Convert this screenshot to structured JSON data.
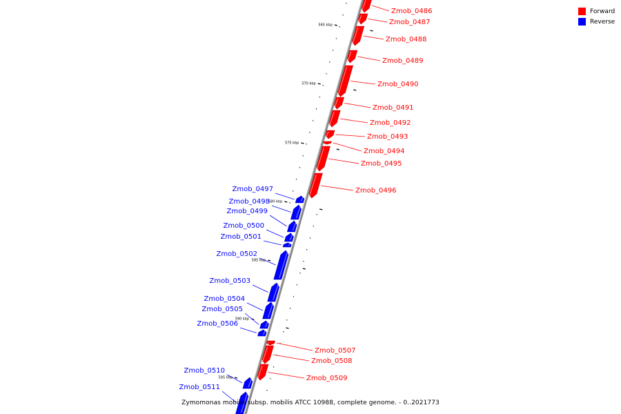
{
  "colors": {
    "forward": "#ff0000",
    "forward_edge": "#c00000",
    "forward_hl": "#ff9a9a",
    "reverse": "#0000ff",
    "reverse_edge": "#0000b0",
    "reverse_hl": "#9a9aff",
    "backbone": "#8a8a8a",
    "backbone_hl": "#d8d8d8"
  },
  "legend": [
    {
      "label": "Forward",
      "color": "#ff0000"
    },
    {
      "label": "Reverse",
      "color": "#0000ff"
    }
  ],
  "caption": "Zymomonas mobilis subsp. mobilis ATCC 10988, complete genome. - 0..2021773",
  "kbp_ticks": [
    "565 kbp",
    "570 kbp",
    "575 kbp",
    "580 kbp",
    "585 kbp",
    "590 kbp",
    "595 kbp"
  ],
  "genes": [
    {
      "name": "Zmob_0486",
      "strand": "forward"
    },
    {
      "name": "Zmob_0487",
      "strand": "forward"
    },
    {
      "name": "Zmob_0488",
      "strand": "forward"
    },
    {
      "name": "Zmob_0489",
      "strand": "forward"
    },
    {
      "name": "Zmob_0490",
      "strand": "forward"
    },
    {
      "name": "Zmob_0491",
      "strand": "forward"
    },
    {
      "name": "Zmob_0492",
      "strand": "forward"
    },
    {
      "name": "Zmob_0493",
      "strand": "forward"
    },
    {
      "name": "Zmob_0494",
      "strand": "forward"
    },
    {
      "name": "Zmob_0495",
      "strand": "forward"
    },
    {
      "name": "Zmob_0496",
      "strand": "forward"
    },
    {
      "name": "Zmob_0497",
      "strand": "reverse"
    },
    {
      "name": "Zmob_0498",
      "strand": "reverse"
    },
    {
      "name": "Zmob_0499",
      "strand": "reverse"
    },
    {
      "name": "Zmob_0500",
      "strand": "reverse"
    },
    {
      "name": "Zmob_0501",
      "strand": "reverse"
    },
    {
      "name": "Zmob_0502",
      "strand": "reverse"
    },
    {
      "name": "Zmob_0503",
      "strand": "reverse"
    },
    {
      "name": "Zmob_0504",
      "strand": "reverse"
    },
    {
      "name": "Zmob_0505",
      "strand": "reverse"
    },
    {
      "name": "Zmob_0506",
      "strand": "reverse"
    },
    {
      "name": "Zmob_0507",
      "strand": "forward"
    },
    {
      "name": "Zmob_0508",
      "strand": "forward"
    },
    {
      "name": "Zmob_0509",
      "strand": "forward"
    },
    {
      "name": "Zmob_0510",
      "strand": "reverse"
    },
    {
      "name": "Zmob_0511",
      "strand": "reverse"
    }
  ]
}
